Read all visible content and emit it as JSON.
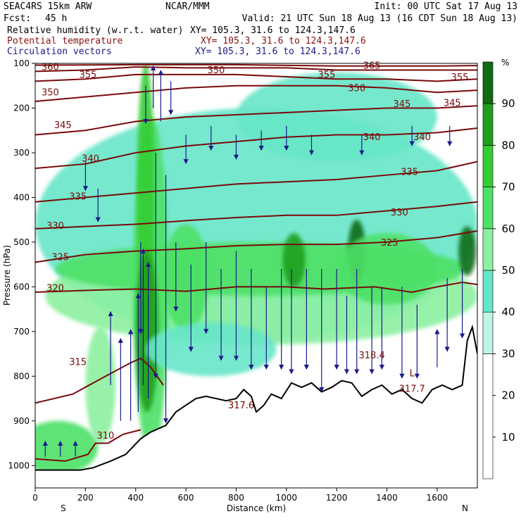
{
  "header": {
    "model": "SEAC4RS 15km ARW",
    "center": "NCAR/MMM",
    "init": "Init: 00 UTC Sat 17 Aug 13",
    "fcst_label": "Fcst:",
    "fcst_value": "45 h",
    "valid": "Valid: 21 UTC Sun 18 Aug 13 (16 CDT Sun 18 Aug 13)",
    "fields": [
      {
        "name": "Relative humidity (w.r.t. water)",
        "xy": "XY= 105.3, 31.6 to 124.3,147.6",
        "color": "#000000"
      },
      {
        "name": "Potential temperature",
        "xy": "XY= 105.3, 31.6 to 124.3,147.6",
        "color": "#8b1010"
      },
      {
        "name": "Circulation vectors",
        "xy": "XY= 105.3, 31.6 to 124.3,147.6",
        "color": "#1a1a8c"
      }
    ]
  },
  "chart_data": {
    "type": "heatmap",
    "xlabel": "Distance (km)",
    "ylabel": "Pressure (hPa)",
    "xlim": [
      0,
      1760
    ],
    "ylim": [
      1050,
      100
    ],
    "x_ticks": [
      0,
      200,
      400,
      600,
      800,
      1000,
      1200,
      1400,
      1600
    ],
    "y_ticks": [
      100,
      200,
      300,
      400,
      500,
      600,
      700,
      800,
      900,
      1000
    ],
    "x_end_labels": {
      "left": "S",
      "right": "N"
    },
    "colorbar": {
      "unit": "%",
      "ticks": [
        10,
        20,
        30,
        40,
        50,
        60,
        70,
        80,
        90
      ],
      "bands": [
        {
          "from": 0,
          "to": 30,
          "color": "#ffffff"
        },
        {
          "from": 30,
          "to": 40,
          "color": "#bff5e6"
        },
        {
          "from": 40,
          "to": 50,
          "color": "#66e6c8"
        },
        {
          "from": 50,
          "to": 60,
          "color": "#8cf0a0"
        },
        {
          "from": 60,
          "to": 70,
          "color": "#4de066"
        },
        {
          "from": 70,
          "to": 80,
          "color": "#33cc33"
        },
        {
          "from": 80,
          "to": 90,
          "color": "#1f9e1f"
        },
        {
          "from": 90,
          "to": 100,
          "color": "#0f6b14"
        }
      ]
    },
    "rh_blobs": [
      {
        "x": 880,
        "p": 460,
        "rx": 880,
        "rp": 260,
        "rh": 42
      },
      {
        "x": 900,
        "p": 620,
        "rx": 860,
        "rp": 110,
        "rh": 55
      },
      {
        "x": 900,
        "p": 560,
        "rx": 820,
        "rp": 60,
        "rh": 65
      },
      {
        "x": 460,
        "p": 600,
        "rx": 70,
        "rp": 380,
        "rh": 60
      },
      {
        "x": 440,
        "p": 400,
        "rx": 35,
        "rp": 300,
        "rh": 75
      },
      {
        "x": 445,
        "p": 700,
        "rx": 45,
        "rp": 180,
        "rh": 82
      },
      {
        "x": 90,
        "p": 960,
        "rx": 160,
        "rp": 60,
        "rh": 62
      },
      {
        "x": 1030,
        "p": 540,
        "rx": 45,
        "rp": 60,
        "rh": 85
      },
      {
        "x": 1280,
        "p": 520,
        "rx": 35,
        "rp": 70,
        "rh": 92
      },
      {
        "x": 1720,
        "p": 520,
        "rx": 35,
        "rp": 55,
        "rh": 92
      },
      {
        "x": 600,
        "p": 580,
        "rx": 90,
        "rp": 120,
        "rh": 60
      },
      {
        "x": 1400,
        "p": 560,
        "rx": 200,
        "rp": 80,
        "rh": 65
      },
      {
        "x": 1200,
        "p": 220,
        "rx": 400,
        "rp": 100,
        "rh": 45
      },
      {
        "x": 260,
        "p": 820,
        "rx": 60,
        "rp": 130,
        "rh": 58
      },
      {
        "x": 700,
        "p": 740,
        "rx": 260,
        "rp": 60,
        "rh": 42
      }
    ],
    "theta_contours": [
      {
        "value": 310,
        "label": "310",
        "label_x": 280,
        "label_p": 940,
        "points": [
          [
            0,
            985
          ],
          [
            120,
            990
          ],
          [
            210,
            975
          ],
          [
            240,
            950
          ],
          [
            290,
            950
          ],
          [
            350,
            930
          ],
          [
            420,
            920
          ]
        ]
      },
      {
        "value": 315,
        "label": "315",
        "label_x": 170,
        "label_p": 775,
        "points": [
          [
            0,
            860
          ],
          [
            150,
            840
          ],
          [
            280,
            800
          ],
          [
            380,
            770
          ],
          [
            420,
            760
          ],
          [
            460,
            780
          ],
          [
            510,
            820
          ]
        ]
      },
      {
        "value": 320,
        "label": "320",
        "label_x": 80,
        "label_p": 610,
        "points": [
          [
            0,
            612
          ],
          [
            200,
            608
          ],
          [
            400,
            605
          ],
          [
            600,
            610
          ],
          [
            800,
            600
          ],
          [
            1000,
            600
          ],
          [
            1150,
            605
          ],
          [
            1350,
            600
          ],
          [
            1500,
            612
          ],
          [
            1600,
            600
          ],
          [
            1700,
            590
          ],
          [
            1760,
            595
          ]
        ]
      },
      {
        "value": 325,
        "label": "325",
        "label_x": 100,
        "label_p": 540,
        "points": [
          [
            0,
            545
          ],
          [
            200,
            528
          ],
          [
            400,
            520
          ],
          [
            600,
            515
          ],
          [
            800,
            508
          ],
          [
            1000,
            505
          ],
          [
            1200,
            505
          ],
          [
            1400,
            500
          ],
          [
            1600,
            490
          ],
          [
            1760,
            475
          ]
        ]
      },
      {
        "value": 330,
        "label": "330",
        "label_x": 80,
        "label_p": 470,
        "points": [
          [
            0,
            470
          ],
          [
            200,
            465
          ],
          [
            400,
            460
          ],
          [
            600,
            452
          ],
          [
            800,
            445
          ],
          [
            1000,
            440
          ],
          [
            1200,
            440
          ],
          [
            1400,
            430
          ],
          [
            1600,
            420
          ],
          [
            1760,
            410
          ]
        ]
      },
      {
        "value": 335,
        "label": "335",
        "label_x": 170,
        "label_p": 405,
        "points": [
          [
            0,
            410
          ],
          [
            200,
            400
          ],
          [
            400,
            390
          ],
          [
            600,
            380
          ],
          [
            800,
            370
          ],
          [
            1000,
            365
          ],
          [
            1200,
            360
          ],
          [
            1400,
            350
          ],
          [
            1600,
            340
          ],
          [
            1760,
            320
          ]
        ]
      },
      {
        "value": 340,
        "label": "340",
        "label_x": 220,
        "label_p": 320,
        "points": [
          [
            0,
            335
          ],
          [
            200,
            325
          ],
          [
            400,
            300
          ],
          [
            600,
            285
          ],
          [
            800,
            275
          ],
          [
            1000,
            265
          ],
          [
            1200,
            260
          ],
          [
            1400,
            260
          ],
          [
            1600,
            255
          ],
          [
            1760,
            245
          ]
        ]
      },
      {
        "value": 345,
        "label": "345",
        "label_x": 110,
        "label_p": 245,
        "points": [
          [
            0,
            260
          ],
          [
            200,
            250
          ],
          [
            400,
            230
          ],
          [
            600,
            220
          ],
          [
            800,
            215
          ],
          [
            1000,
            210
          ],
          [
            1200,
            205
          ],
          [
            1400,
            200
          ],
          [
            1600,
            200
          ],
          [
            1760,
            195
          ]
        ]
      },
      {
        "value": 350,
        "label": "350",
        "label_x": 60,
        "label_p": 172,
        "points": [
          [
            0,
            185
          ],
          [
            200,
            175
          ],
          [
            400,
            165
          ],
          [
            600,
            155
          ],
          [
            800,
            150
          ],
          [
            1000,
            150
          ],
          [
            1200,
            150
          ],
          [
            1400,
            155
          ],
          [
            1600,
            165
          ],
          [
            1760,
            160
          ]
        ]
      },
      {
        "value": 355,
        "label": "355",
        "label_x": 210,
        "label_p": 132,
        "points": [
          [
            0,
            140
          ],
          [
            200,
            135
          ],
          [
            400,
            125
          ],
          [
            600,
            125
          ],
          [
            800,
            125
          ],
          [
            1000,
            130
          ],
          [
            1200,
            135
          ],
          [
            1400,
            135
          ],
          [
            1600,
            140
          ],
          [
            1760,
            135
          ]
        ]
      },
      {
        "value": 360,
        "label": "360",
        "label_x": 60,
        "label_p": 115,
        "points": [
          [
            0,
            118
          ],
          [
            200,
            115
          ],
          [
            400,
            108
          ],
          [
            600,
            110
          ],
          [
            800,
            110
          ],
          [
            1000,
            110
          ],
          [
            1200,
            115
          ],
          [
            1400,
            115
          ],
          [
            1600,
            115
          ],
          [
            1760,
            115
          ]
        ]
      },
      {
        "value": 365,
        "label": "365",
        "label_x": 1340,
        "label_p": 112,
        "points": [
          [
            0,
            104
          ],
          [
            400,
            103
          ],
          [
            800,
            103
          ],
          [
            1200,
            106
          ],
          [
            1600,
            106
          ],
          [
            1760,
            105
          ]
        ]
      }
    ],
    "extra_labels": [
      {
        "text": "350",
        "x": 720,
        "p": 122
      },
      {
        "text": "355",
        "x": 1160,
        "p": 132
      },
      {
        "text": "355",
        "x": 1690,
        "p": 138
      },
      {
        "text": "350",
        "x": 1280,
        "p": 162
      },
      {
        "text": "345",
        "x": 1460,
        "p": 198
      },
      {
        "text": "345",
        "x": 1660,
        "p": 195
      },
      {
        "text": "340",
        "x": 1340,
        "p": 272
      },
      {
        "text": "340",
        "x": 1540,
        "p": 272
      },
      {
        "text": "335",
        "x": 1490,
        "p": 350
      },
      {
        "text": "330",
        "x": 1450,
        "p": 440
      },
      {
        "text": "325",
        "x": 1410,
        "p": 508
      },
      {
        "text": "318.4",
        "x": 1340,
        "p": 760
      },
      {
        "text": "L",
        "x": 1500,
        "p": 800
      },
      {
        "text": "317.7",
        "x": 1500,
        "p": 835
      },
      {
        "text": "317.6",
        "x": 820,
        "p": 872
      }
    ],
    "terrain": [
      [
        0,
        1010
      ],
      [
        180,
        1010
      ],
      [
        230,
        1005
      ],
      [
        300,
        990
      ],
      [
        360,
        975
      ],
      [
        420,
        940
      ],
      [
        460,
        925
      ],
      [
        520,
        910
      ],
      [
        560,
        880
      ],
      [
        600,
        865
      ],
      [
        640,
        850
      ],
      [
        680,
        845
      ],
      [
        720,
        850
      ],
      [
        760,
        855
      ],
      [
        800,
        850
      ],
      [
        830,
        830
      ],
      [
        860,
        845
      ],
      [
        880,
        880
      ],
      [
        910,
        865
      ],
      [
        940,
        840
      ],
      [
        980,
        850
      ],
      [
        1020,
        815
      ],
      [
        1060,
        825
      ],
      [
        1100,
        815
      ],
      [
        1140,
        835
      ],
      [
        1180,
        825
      ],
      [
        1220,
        810
      ],
      [
        1260,
        815
      ],
      [
        1300,
        845
      ],
      [
        1340,
        830
      ],
      [
        1380,
        820
      ],
      [
        1420,
        840
      ],
      [
        1460,
        830
      ],
      [
        1500,
        850
      ],
      [
        1540,
        860
      ],
      [
        1580,
        830
      ],
      [
        1620,
        820
      ],
      [
        1660,
        830
      ],
      [
        1700,
        820
      ],
      [
        1720,
        720
      ],
      [
        1740,
        690
      ],
      [
        1760,
        750
      ]
    ],
    "vectors": [
      {
        "x": 40,
        "p": 980,
        "dp": -30
      },
      {
        "x": 100,
        "p": 980,
        "dp": -30
      },
      {
        "x": 160,
        "p": 980,
        "dp": -30
      },
      {
        "x": 300,
        "p": 820,
        "dp": -160
      },
      {
        "x": 340,
        "p": 900,
        "dp": -180
      },
      {
        "x": 380,
        "p": 900,
        "dp": -200
      },
      {
        "x": 410,
        "p": 880,
        "dp": -260
      },
      {
        "x": 430,
        "p": 820,
        "dp": -300
      },
      {
        "x": 450,
        "p": 850,
        "dp": -300
      },
      {
        "x": 480,
        "p": 300,
        "dp": 500
      },
      {
        "x": 520,
        "p": 350,
        "dp": 550
      },
      {
        "x": 470,
        "p": 200,
        "dp": -90
      },
      {
        "x": 500,
        "p": 230,
        "dp": -110
      },
      {
        "x": 200,
        "p": 320,
        "dp": 60
      },
      {
        "x": 250,
        "p": 380,
        "dp": 70
      },
      {
        "x": 560,
        "p": 500,
        "dp": 150
      },
      {
        "x": 620,
        "p": 550,
        "dp": 190
      },
      {
        "x": 680,
        "p": 500,
        "dp": 200
      },
      {
        "x": 740,
        "p": 560,
        "dp": 200
      },
      {
        "x": 800,
        "p": 520,
        "dp": 240
      },
      {
        "x": 860,
        "p": 560,
        "dp": 220
      },
      {
        "x": 920,
        "p": 600,
        "dp": 180
      },
      {
        "x": 980,
        "p": 560,
        "dp": 220
      },
      {
        "x": 1020,
        "p": 560,
        "dp": 230
      },
      {
        "x": 1080,
        "p": 560,
        "dp": 220
      },
      {
        "x": 1140,
        "p": 560,
        "dp": 270
      },
      {
        "x": 1200,
        "p": 560,
        "dp": 220
      },
      {
        "x": 1240,
        "p": 620,
        "dp": 170
      },
      {
        "x": 1280,
        "p": 560,
        "dp": 230
      },
      {
        "x": 1340,
        "p": 600,
        "dp": 190
      },
      {
        "x": 1380,
        "p": 600,
        "dp": 180
      },
      {
        "x": 1460,
        "p": 600,
        "dp": 200
      },
      {
        "x": 1520,
        "p": 640,
        "dp": 160
      },
      {
        "x": 1600,
        "p": 780,
        "dp": -80
      },
      {
        "x": 1640,
        "p": 580,
        "dp": 160
      },
      {
        "x": 1700,
        "p": 560,
        "dp": 150
      },
      {
        "x": 600,
        "p": 260,
        "dp": 60
      },
      {
        "x": 700,
        "p": 240,
        "dp": 50
      },
      {
        "x": 800,
        "p": 260,
        "dp": 50
      },
      {
        "x": 900,
        "p": 250,
        "dp": 40
      },
      {
        "x": 1000,
        "p": 240,
        "dp": 50
      },
      {
        "x": 1100,
        "p": 260,
        "dp": 40
      },
      {
        "x": 1300,
        "p": 260,
        "dp": 40
      },
      {
        "x": 1500,
        "p": 240,
        "dp": 40
      },
      {
        "x": 1650,
        "p": 240,
        "dp": 40
      },
      {
        "x": 440,
        "p": 150,
        "dp": 80
      },
      {
        "x": 540,
        "p": 140,
        "dp": 70
      },
      {
        "x": 420,
        "p": 500,
        "dp": 200
      }
    ]
  }
}
